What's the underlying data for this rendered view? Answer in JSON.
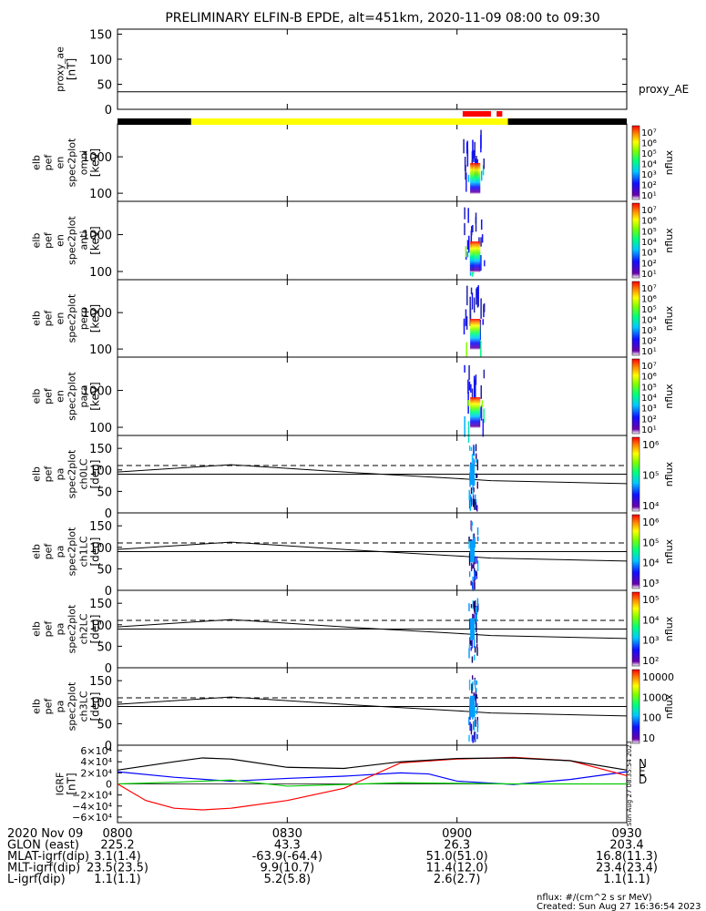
{
  "title": "PRELIMINARY ELFIN-B EPDE, alt=451km, 2020-11-09 08:00 to 09:30",
  "panels": [
    {
      "id": "proxy_ae",
      "ylabel": [
        "proxy_ae",
        "[nT]"
      ],
      "ticks": [
        "150",
        "100",
        "50",
        "0"
      ],
      "right_label": "proxy_AE"
    },
    {
      "id": "omni",
      "ylabel": [
        "elb",
        "pef",
        "en",
        "spec2plot",
        "omni",
        "[keV]"
      ],
      "ticks": [
        "1000",
        "100"
      ],
      "cbar": [
        "10⁷",
        "10⁶",
        "10⁵",
        "10⁴",
        "10³",
        "10²",
        "10¹"
      ],
      "cbar_label": "nflux"
    },
    {
      "id": "anti",
      "ylabel": [
        "elb",
        "pef",
        "en",
        "spec2plot",
        "anti",
        "[keV]"
      ],
      "ticks": [
        "1000",
        "100"
      ],
      "cbar": [
        "10⁷",
        "10⁶",
        "10⁵",
        "10⁴",
        "10³",
        "10²",
        "10¹"
      ],
      "cbar_label": "nflux"
    },
    {
      "id": "perp",
      "ylabel": [
        "elb",
        "pef",
        "en",
        "spec2plot",
        "perp",
        "[keV]"
      ],
      "ticks": [
        "1000",
        "100"
      ],
      "cbar": [
        "10⁷",
        "10⁶",
        "10⁵",
        "10⁴",
        "10³",
        "10²",
        "10¹"
      ],
      "cbar_label": "nflux"
    },
    {
      "id": "para",
      "ylabel": [
        "elb",
        "pef",
        "en",
        "spec2plot",
        "para",
        "[keV]"
      ],
      "ticks": [
        "1000",
        "100"
      ],
      "cbar": [
        "10⁷",
        "10⁶",
        "10⁵",
        "10⁴",
        "10³",
        "10²",
        "10¹"
      ],
      "cbar_label": "nflux"
    },
    {
      "id": "ch0LC",
      "ylabel": [
        "elb",
        "pef",
        "pa",
        "spec2plot",
        "ch0LC",
        "[deg]"
      ],
      "ticks": [
        "150",
        "100",
        "50",
        "0"
      ],
      "cbar": [
        "10⁶",
        "10⁵",
        "10⁴"
      ],
      "cbar_label": "nflux"
    },
    {
      "id": "ch1LC",
      "ylabel": [
        "elb",
        "pef",
        "pa",
        "spec2plot",
        "ch1LC",
        "[deg]"
      ],
      "ticks": [
        "150",
        "100",
        "50",
        "0"
      ],
      "cbar": [
        "10⁶",
        "10⁵",
        "10⁴",
        "10³"
      ],
      "cbar_label": "nflux"
    },
    {
      "id": "ch2LC",
      "ylabel": [
        "elb",
        "pef",
        "pa",
        "spec2plot",
        "ch2LC",
        "[deg]"
      ],
      "ticks": [
        "150",
        "100",
        "50",
        "0"
      ],
      "cbar": [
        "10⁵",
        "10⁴",
        "10³",
        "10²"
      ],
      "cbar_label": "nflux"
    },
    {
      "id": "ch3LC",
      "ylabel": [
        "elb",
        "pef",
        "pa",
        "spec2plot",
        "ch3LC",
        "[deg]"
      ],
      "ticks": [
        "150",
        "100",
        "50",
        "0"
      ],
      "cbar": [
        "10000",
        "1000",
        "100",
        "10"
      ],
      "cbar_label": "nflux"
    },
    {
      "id": "igrf",
      "ylabel": [
        "IGRF",
        "[nT]"
      ],
      "ticks": [
        "6×10⁴",
        "4×10⁴",
        "2×10⁴",
        "0",
        "−2×10⁴",
        "−4×10⁴",
        "−6×10⁴"
      ],
      "legend": [
        "N",
        "E",
        "D"
      ]
    }
  ],
  "footer": {
    "rows": [
      {
        "label": "2020 Nov 09",
        "values": [
          "0800",
          "0830",
          "0900",
          "0930"
        ]
      },
      {
        "label": "GLON (east)",
        "values": [
          "225.2",
          "43.3",
          "26.3",
          "203.4"
        ]
      },
      {
        "label": "MLAT-igrf(dip)",
        "values": [
          "3.1(1.4)",
          "-63.9(-64.4)",
          "51.0(51.0)",
          "16.8(11.3)"
        ]
      },
      {
        "label": "MLT-igrf(dip)",
        "values": [
          "23.5(23.5)",
          "9.9(10.7)",
          "11.4(12.0)",
          "23.4(23.4)"
        ]
      },
      {
        "label": "L-igrf(dip)",
        "values": [
          "1.1(1.1)",
          "5.2(5.8)",
          "2.6(2.7)",
          "1.1(1.1)"
        ]
      }
    ],
    "units": "nflux: #/(cm^2 s sr MeV)",
    "created": "Created: Sun Aug 27 16:36:54 2023",
    "vertical_stamp": "Sun Aug 27 08:35:54 2023"
  },
  "colors": {
    "ae_line": "#000000",
    "status_black": "#000000",
    "status_yellow": "#ffff00",
    "status_red": "#ff0000",
    "N": "#0000ff",
    "E": "#00cc00",
    "D": "#ff0000",
    "total": "#000000"
  },
  "chart_data": {
    "type": "line",
    "x_range": [
      "08:00",
      "09:30"
    ],
    "x_ticks": [
      "0800",
      "0830",
      "0900",
      "0930"
    ],
    "proxy_ae": {
      "ylim": [
        0,
        160
      ],
      "values": [
        35,
        35
      ]
    },
    "energy_ylim_keV": [
      60,
      8000
    ],
    "pitch_ylim_deg": [
      0,
      180
    ],
    "loss_cone_dashed_deg": 110,
    "science_interval_red": [
      [
        "09:01",
        "09:06"
      ],
      [
        "09:07",
        "09:08"
      ]
    ],
    "status_yellow": [
      "08:13",
      "09:09"
    ],
    "igrf": {
      "ylim": [
        -70000,
        70000
      ],
      "series": [
        {
          "name": "N",
          "x_min": [
            0,
            10,
            20,
            30,
            40,
            50,
            55,
            60,
            70,
            80,
            90
          ],
          "y": [
            22000,
            12000,
            5000,
            10000,
            14000,
            20000,
            18000,
            5000,
            -1000,
            8000,
            22000
          ]
        },
        {
          "name": "E",
          "x_min": [
            0,
            10,
            20,
            30,
            40,
            50,
            60,
            70,
            80,
            90
          ],
          "y": [
            0,
            3000,
            7000,
            -4000,
            -1000,
            2000,
            1000,
            0,
            0,
            0
          ]
        },
        {
          "name": "D",
          "x_min": [
            0,
            5,
            10,
            15,
            20,
            30,
            40,
            50,
            60,
            70,
            80,
            90
          ],
          "y": [
            0,
            -30000,
            -44000,
            -47000,
            -44000,
            -30000,
            -8000,
            38000,
            45000,
            48000,
            42000,
            15000
          ]
        },
        {
          "name": "total",
          "x_min": [
            0,
            10,
            15,
            20,
            30,
            40,
            50,
            60,
            70,
            80,
            90
          ],
          "y": [
            25000,
            40000,
            47000,
            45000,
            30000,
            28000,
            40000,
            46000,
            47000,
            42000,
            25000
          ]
        }
      ]
    }
  }
}
